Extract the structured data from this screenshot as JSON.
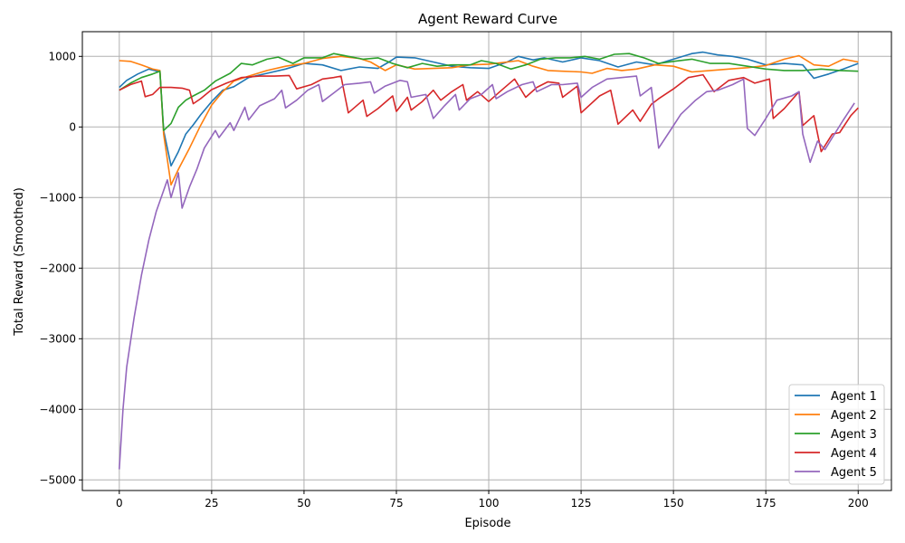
{
  "chart_data": {
    "type": "line",
    "title": "Agent Reward Curve",
    "xlabel": "Episode",
    "ylabel": "Total Reward (Smoothed)",
    "xlim": [
      -10,
      209
    ],
    "ylim": [
      -5150,
      1350
    ],
    "xticks": [
      0,
      25,
      50,
      75,
      100,
      125,
      150,
      175,
      200
    ],
    "yticks": [
      -5000,
      -4000,
      -3000,
      -2000,
      -1000,
      0,
      1000
    ],
    "grid": true,
    "legend_position": "bottom-right",
    "series": [
      {
        "name": "Agent 1",
        "color": "#1f77b4",
        "points": [
          [
            0,
            560
          ],
          [
            2,
            660
          ],
          [
            5,
            750
          ],
          [
            8,
            820
          ],
          [
            11,
            780
          ],
          [
            12,
            -50
          ],
          [
            14,
            -550
          ],
          [
            16,
            -350
          ],
          [
            18,
            -100
          ],
          [
            20,
            30
          ],
          [
            22,
            170
          ],
          [
            25,
            360
          ],
          [
            28,
            520
          ],
          [
            31,
            570
          ],
          [
            35,
            700
          ],
          [
            40,
            760
          ],
          [
            45,
            820
          ],
          [
            50,
            900
          ],
          [
            55,
            880
          ],
          [
            60,
            800
          ],
          [
            65,
            850
          ],
          [
            70,
            830
          ],
          [
            73,
            920
          ],
          [
            75,
            990
          ],
          [
            80,
            980
          ],
          [
            85,
            920
          ],
          [
            90,
            860
          ],
          [
            95,
            840
          ],
          [
            100,
            830
          ],
          [
            105,
            920
          ],
          [
            108,
            1000
          ],
          [
            112,
            950
          ],
          [
            115,
            980
          ],
          [
            120,
            920
          ],
          [
            125,
            980
          ],
          [
            130,
            940
          ],
          [
            135,
            850
          ],
          [
            140,
            920
          ],
          [
            145,
            880
          ],
          [
            150,
            960
          ],
          [
            155,
            1040
          ],
          [
            158,
            1060
          ],
          [
            162,
            1020
          ],
          [
            166,
            1000
          ],
          [
            170,
            960
          ],
          [
            175,
            880
          ],
          [
            180,
            900
          ],
          [
            185,
            880
          ],
          [
            188,
            690
          ],
          [
            192,
            750
          ],
          [
            196,
            820
          ],
          [
            200,
            900
          ]
        ]
      },
      {
        "name": "Agent 2",
        "color": "#ff7f0e",
        "points": [
          [
            0,
            940
          ],
          [
            3,
            930
          ],
          [
            6,
            880
          ],
          [
            9,
            820
          ],
          [
            11,
            800
          ],
          [
            12,
            -100
          ],
          [
            14,
            -820
          ],
          [
            16,
            -600
          ],
          [
            19,
            -300
          ],
          [
            22,
            20
          ],
          [
            25,
            310
          ],
          [
            28,
            500
          ],
          [
            31,
            650
          ],
          [
            35,
            720
          ],
          [
            40,
            800
          ],
          [
            45,
            860
          ],
          [
            50,
            900
          ],
          [
            55,
            970
          ],
          [
            60,
            1000
          ],
          [
            65,
            970
          ],
          [
            68,
            920
          ],
          [
            72,
            800
          ],
          [
            75,
            880
          ],
          [
            80,
            820
          ],
          [
            85,
            830
          ],
          [
            90,
            840
          ],
          [
            95,
            880
          ],
          [
            100,
            890
          ],
          [
            105,
            920
          ],
          [
            108,
            940
          ],
          [
            112,
            860
          ],
          [
            116,
            800
          ],
          [
            120,
            790
          ],
          [
            125,
            780
          ],
          [
            128,
            760
          ],
          [
            132,
            830
          ],
          [
            136,
            800
          ],
          [
            140,
            820
          ],
          [
            145,
            880
          ],
          [
            150,
            860
          ],
          [
            155,
            780
          ],
          [
            160,
            800
          ],
          [
            165,
            820
          ],
          [
            170,
            840
          ],
          [
            175,
            870
          ],
          [
            180,
            960
          ],
          [
            184,
            1010
          ],
          [
            188,
            880
          ],
          [
            192,
            860
          ],
          [
            196,
            960
          ],
          [
            200,
            920
          ]
        ]
      },
      {
        "name": "Agent 3",
        "color": "#2ca02c",
        "points": [
          [
            0,
            520
          ],
          [
            3,
            620
          ],
          [
            6,
            700
          ],
          [
            9,
            750
          ],
          [
            11,
            790
          ],
          [
            12,
            -50
          ],
          [
            14,
            50
          ],
          [
            16,
            280
          ],
          [
            18,
            380
          ],
          [
            20,
            440
          ],
          [
            23,
            520
          ],
          [
            26,
            650
          ],
          [
            30,
            760
          ],
          [
            33,
            900
          ],
          [
            36,
            880
          ],
          [
            40,
            960
          ],
          [
            43,
            990
          ],
          [
            47,
            900
          ],
          [
            50,
            980
          ],
          [
            55,
            980
          ],
          [
            58,
            1040
          ],
          [
            62,
            1000
          ],
          [
            66,
            960
          ],
          [
            70,
            980
          ],
          [
            74,
            900
          ],
          [
            78,
            840
          ],
          [
            82,
            900
          ],
          [
            86,
            860
          ],
          [
            90,
            880
          ],
          [
            95,
            880
          ],
          [
            98,
            940
          ],
          [
            102,
            900
          ],
          [
            106,
            820
          ],
          [
            110,
            880
          ],
          [
            114,
            960
          ],
          [
            118,
            980
          ],
          [
            122,
            980
          ],
          [
            126,
            1000
          ],
          [
            130,
            960
          ],
          [
            134,
            1030
          ],
          [
            138,
            1040
          ],
          [
            142,
            980
          ],
          [
            146,
            900
          ],
          [
            150,
            930
          ],
          [
            155,
            960
          ],
          [
            160,
            900
          ],
          [
            165,
            900
          ],
          [
            170,
            860
          ],
          [
            175,
            820
          ],
          [
            180,
            800
          ],
          [
            185,
            800
          ],
          [
            190,
            820
          ],
          [
            195,
            800
          ],
          [
            200,
            790
          ]
        ]
      },
      {
        "name": "Agent 4",
        "color": "#d62728",
        "points": [
          [
            0,
            520
          ],
          [
            3,
            600
          ],
          [
            6,
            650
          ],
          [
            7,
            430
          ],
          [
            9,
            460
          ],
          [
            11,
            560
          ],
          [
            14,
            560
          ],
          [
            17,
            550
          ],
          [
            19,
            520
          ],
          [
            20,
            330
          ],
          [
            22,
            400
          ],
          [
            25,
            530
          ],
          [
            29,
            620
          ],
          [
            33,
            700
          ],
          [
            38,
            720
          ],
          [
            42,
            720
          ],
          [
            46,
            730
          ],
          [
            48,
            540
          ],
          [
            52,
            600
          ],
          [
            55,
            680
          ],
          [
            58,
            700
          ],
          [
            60,
            720
          ],
          [
            61,
            460
          ],
          [
            62,
            200
          ],
          [
            66,
            380
          ],
          [
            67,
            150
          ],
          [
            70,
            260
          ],
          [
            74,
            440
          ],
          [
            75,
            220
          ],
          [
            78,
            420
          ],
          [
            79,
            240
          ],
          [
            82,
            360
          ],
          [
            85,
            520
          ],
          [
            87,
            380
          ],
          [
            90,
            500
          ],
          [
            93,
            600
          ],
          [
            94,
            380
          ],
          [
            97,
            500
          ],
          [
            100,
            360
          ],
          [
            103,
            500
          ],
          [
            107,
            680
          ],
          [
            110,
            420
          ],
          [
            113,
            560
          ],
          [
            116,
            640
          ],
          [
            119,
            620
          ],
          [
            120,
            420
          ],
          [
            124,
            580
          ],
          [
            125,
            200
          ],
          [
            130,
            440
          ],
          [
            133,
            520
          ],
          [
            135,
            40
          ],
          [
            139,
            240
          ],
          [
            141,
            80
          ],
          [
            144,
            320
          ],
          [
            146,
            400
          ],
          [
            150,
            540
          ],
          [
            154,
            700
          ],
          [
            158,
            740
          ],
          [
            161,
            500
          ],
          [
            165,
            660
          ],
          [
            169,
            700
          ],
          [
            172,
            620
          ],
          [
            176,
            680
          ],
          [
            177,
            120
          ],
          [
            180,
            260
          ],
          [
            184,
            500
          ],
          [
            185,
            20
          ],
          [
            188,
            160
          ],
          [
            190,
            -350
          ],
          [
            193,
            -100
          ],
          [
            195,
            -80
          ],
          [
            198,
            160
          ],
          [
            200,
            270
          ]
        ]
      },
      {
        "name": "Agent 5",
        "color": "#9467bd",
        "points": [
          [
            0,
            -4850
          ],
          [
            1,
            -4000
          ],
          [
            2,
            -3400
          ],
          [
            4,
            -2700
          ],
          [
            6,
            -2100
          ],
          [
            8,
            -1600
          ],
          [
            10,
            -1200
          ],
          [
            12,
            -900
          ],
          [
            13,
            -750
          ],
          [
            14,
            -1000
          ],
          [
            16,
            -650
          ],
          [
            17,
            -1150
          ],
          [
            19,
            -850
          ],
          [
            21,
            -600
          ],
          [
            23,
            -300
          ],
          [
            26,
            -50
          ],
          [
            27,
            -150
          ],
          [
            30,
            60
          ],
          [
            31,
            -50
          ],
          [
            34,
            280
          ],
          [
            35,
            100
          ],
          [
            38,
            300
          ],
          [
            42,
            400
          ],
          [
            44,
            520
          ],
          [
            45,
            270
          ],
          [
            48,
            380
          ],
          [
            51,
            520
          ],
          [
            54,
            600
          ],
          [
            55,
            360
          ],
          [
            58,
            480
          ],
          [
            61,
            600
          ],
          [
            65,
            620
          ],
          [
            68,
            640
          ],
          [
            69,
            480
          ],
          [
            72,
            580
          ],
          [
            76,
            660
          ],
          [
            78,
            640
          ],
          [
            79,
            420
          ],
          [
            83,
            460
          ],
          [
            85,
            120
          ],
          [
            88,
            300
          ],
          [
            91,
            460
          ],
          [
            92,
            240
          ],
          [
            95,
            400
          ],
          [
            98,
            460
          ],
          [
            101,
            600
          ],
          [
            102,
            400
          ],
          [
            105,
            500
          ],
          [
            109,
            600
          ],
          [
            112,
            640
          ],
          [
            113,
            500
          ],
          [
            117,
            600
          ],
          [
            120,
            600
          ],
          [
            124,
            620
          ],
          [
            125,
            420
          ],
          [
            128,
            560
          ],
          [
            132,
            680
          ],
          [
            136,
            700
          ],
          [
            140,
            720
          ],
          [
            141,
            440
          ],
          [
            144,
            560
          ],
          [
            146,
            -300
          ],
          [
            149,
            -60
          ],
          [
            152,
            180
          ],
          [
            156,
            380
          ],
          [
            159,
            500
          ],
          [
            162,
            520
          ],
          [
            166,
            600
          ],
          [
            169,
            680
          ],
          [
            170,
            -20
          ],
          [
            172,
            -120
          ],
          [
            175,
            120
          ],
          [
            178,
            380
          ],
          [
            182,
            440
          ],
          [
            184,
            500
          ],
          [
            185,
            -100
          ],
          [
            187,
            -500
          ],
          [
            189,
            -200
          ],
          [
            191,
            -320
          ],
          [
            193,
            -150
          ],
          [
            196,
            100
          ],
          [
            199,
            340
          ]
        ]
      }
    ]
  }
}
